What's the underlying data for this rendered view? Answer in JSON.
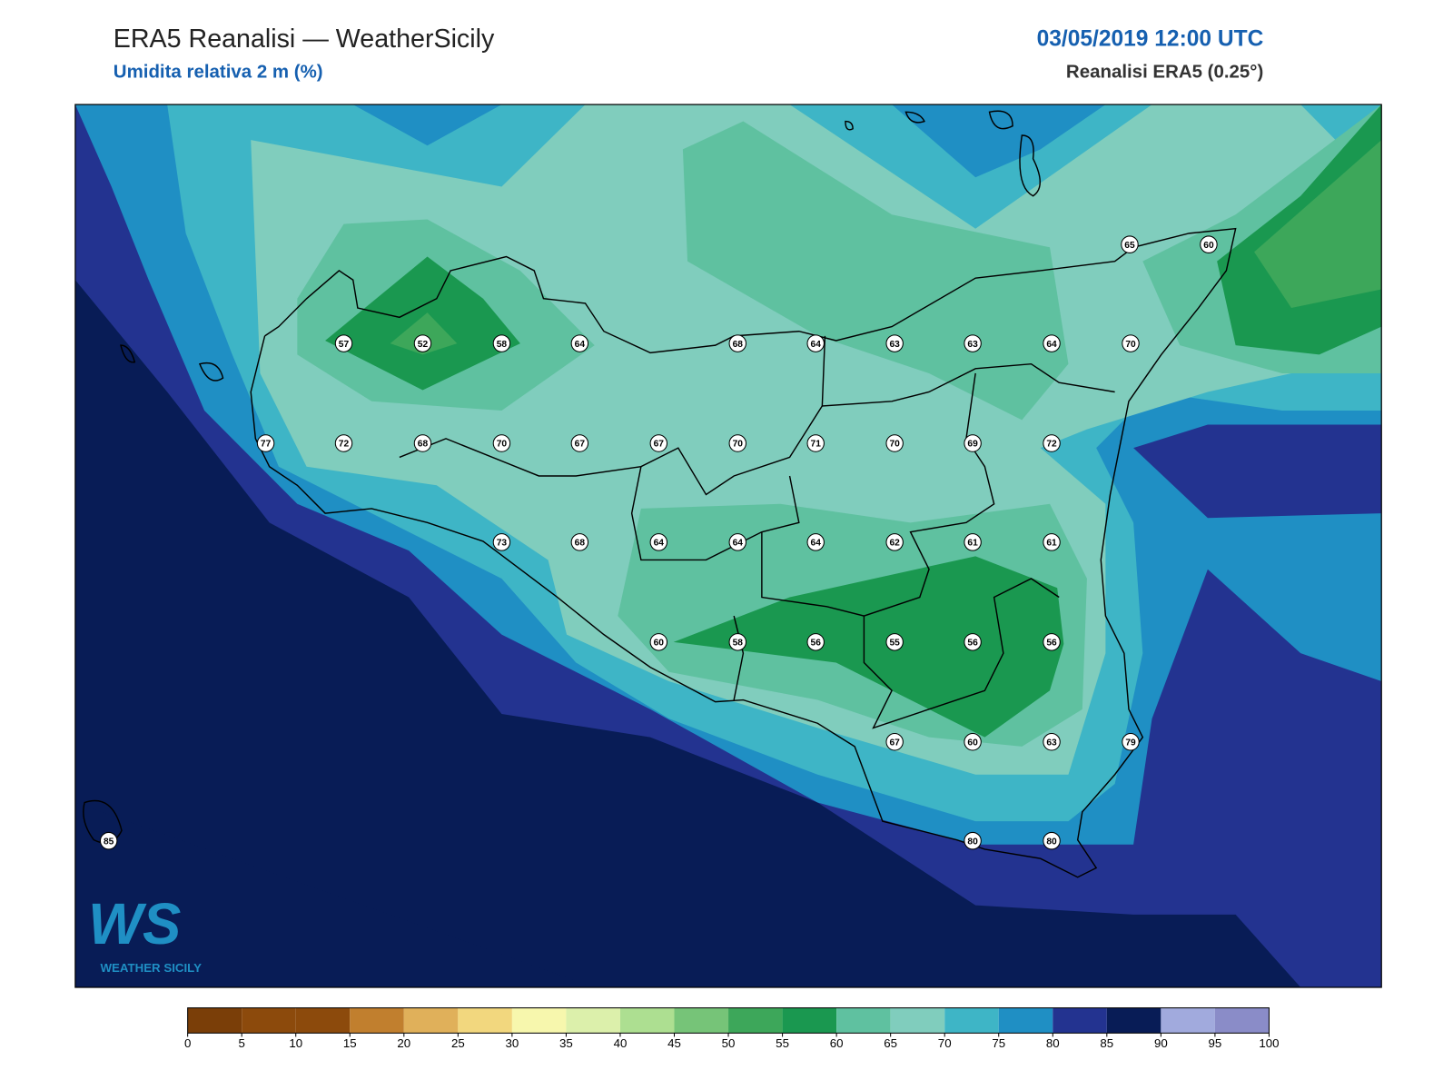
{
  "header": {
    "title": "ERA5 Reanalisi — WeatherSicily",
    "subtitle": "Umidita relativa 2 m (%)",
    "datetime": "03/05/2019 12:00 UTC",
    "source": "Reanalisi ERA5 (0.25°)"
  },
  "stations": {
    "values": [
      65,
      60,
      57,
      52,
      58,
      64,
      68,
      64,
      63,
      63,
      64,
      70,
      77,
      72,
      68,
      70,
      67,
      67,
      70,
      71,
      70,
      69,
      72,
      73,
      68,
      64,
      64,
      64,
      62,
      61,
      61,
      60,
      58,
      56,
      55,
      56,
      56,
      67,
      60,
      63,
      79,
      85,
      80,
      80
    ]
  },
  "colorbar": {
    "ticks": [
      0,
      5,
      10,
      15,
      20,
      25,
      30,
      35,
      40,
      45,
      50,
      55,
      60,
      65,
      70,
      75,
      80,
      85,
      90,
      95,
      100
    ],
    "colors": [
      "#7a3e08",
      "#8c4a0c",
      "#8c4a0c",
      "#c17f2e",
      "#e0b05a",
      "#f2d77e",
      "#f7f7ad",
      "#dcf0ab",
      "#addf91",
      "#76c478",
      "#3da75a",
      "#1a9850",
      "#5fc1a0",
      "#80cdbd",
      "#3eb5c6",
      "#1f8fc4",
      "#233390",
      "#081c56",
      "#a1aadd",
      "#8a8cc8"
    ]
  },
  "logo": {
    "mark": "WS",
    "name": "WEATHER SICILY"
  }
}
